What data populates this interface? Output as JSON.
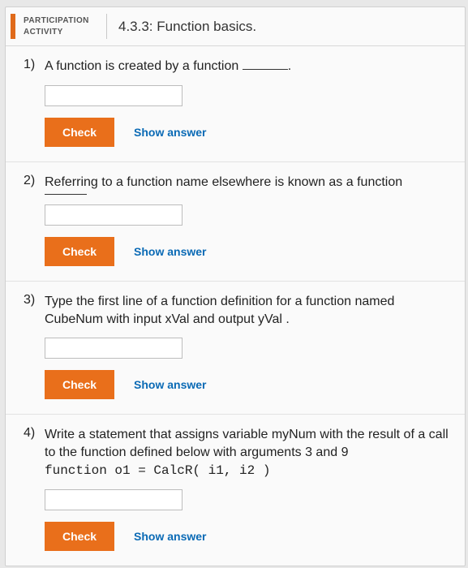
{
  "header": {
    "activity_line1": "PARTICIPATION",
    "activity_line2": "ACTIVITY",
    "title": "4.3.3: Function basics."
  },
  "buttons": {
    "check": "Check",
    "show_answer": "Show answer"
  },
  "q1": {
    "num": "1)",
    "text": "A function is created by a function "
  },
  "q2": {
    "num": "2)",
    "text": "Referring to a function name elsewhere is known as a function"
  },
  "q3": {
    "num": "3)",
    "text": "Type the first line of a function definition for a function named CubeNum with input xVal and output yVal ."
  },
  "q4": {
    "num": "4)",
    "text": "Write a statement that assigns variable myNum with the result of a call to the function defined below with arguments 3 and 9",
    "code": "function o1 = CalcR( i1, i2 )"
  }
}
